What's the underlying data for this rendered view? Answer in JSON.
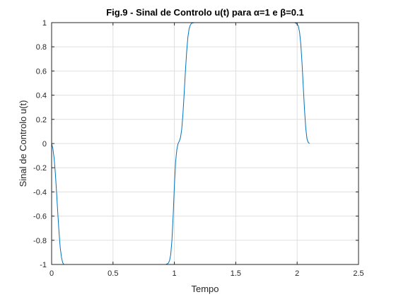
{
  "chart_data": {
    "type": "line",
    "title": "Fig.9 - Sinal de Controlo u(t) para α=1 e β=0.1",
    "xlabel": "Tempo",
    "ylabel": "Sinal de Controlo u(t)",
    "xlim": [
      0,
      2.5
    ],
    "ylim": [
      -1,
      1
    ],
    "xticks": [
      0,
      0.5,
      1,
      1.5,
      2,
      2.5
    ],
    "yticks": [
      -1,
      -0.8,
      -0.6,
      -0.4,
      -0.2,
      0,
      0.2,
      0.4,
      0.6,
      0.8,
      1
    ],
    "xtick_labels": [
      "0",
      "0.5",
      "1",
      "1.5",
      "2",
      "2.5"
    ],
    "ytick_labels": [
      "-1",
      "-0.8",
      "-0.6",
      "-0.4",
      "-0.2",
      "0",
      "0.2",
      "0.4",
      "0.6",
      "0.8",
      "1"
    ],
    "grid": true,
    "line_color": "#0072bd",
    "series": [
      {
        "x": [
          0,
          0.01,
          0.02,
          0.03,
          0.04,
          0.05,
          0.06,
          0.07,
          0.08,
          0.09,
          0.1,
          0.12,
          0.2,
          0.4,
          0.6,
          0.8,
          0.93,
          0.95,
          0.96,
          0.97,
          0.98,
          0.99,
          1.0,
          1.01,
          1.02,
          1.03,
          1.04,
          1.05,
          1.06,
          1.07,
          1.08,
          1.09,
          1.1,
          1.11,
          1.12,
          1.13,
          1.14,
          1.16,
          1.2,
          1.4,
          1.6,
          1.8,
          1.98,
          2.0,
          2.01,
          2.02,
          2.03,
          2.04,
          2.05,
          2.06,
          2.07,
          2.08,
          2.09,
          2.1
        ],
        "y": [
          0,
          -0.04,
          -0.12,
          -0.24,
          -0.4,
          -0.57,
          -0.73,
          -0.86,
          -0.94,
          -0.985,
          -1,
          -1,
          -1,
          -1,
          -1,
          -1,
          -1,
          -0.99,
          -0.97,
          -0.92,
          -0.8,
          -0.6,
          -0.35,
          -0.15,
          -0.05,
          0,
          0.02,
          0.05,
          0.12,
          0.25,
          0.42,
          0.6,
          0.76,
          0.88,
          0.95,
          0.98,
          0.995,
          1,
          1,
          1,
          1,
          1,
          1,
          0.99,
          0.97,
          0.92,
          0.82,
          0.66,
          0.47,
          0.28,
          0.13,
          0.04,
          0.01,
          0
        ]
      }
    ]
  }
}
